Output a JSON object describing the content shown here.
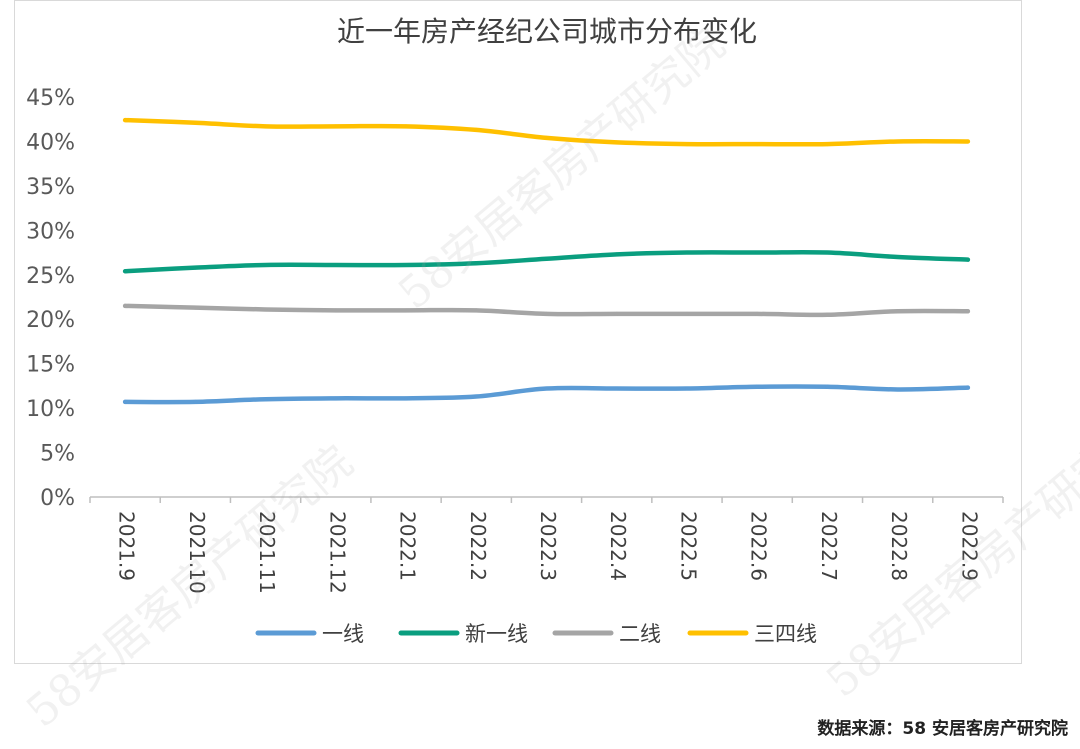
{
  "watermark_text": "58安居客房产研究院",
  "source_note": "数据来源：58 安居客房产研究院",
  "chart_data": {
    "type": "line",
    "title": "近一年房产经纪公司城市分布变化",
    "xlabel": "",
    "ylabel": "",
    "categories": [
      "2021.9",
      "2021.10",
      "2021.11",
      "2021.12",
      "2022.1",
      "2022.2",
      "2022.3",
      "2022.4",
      "2022.5",
      "2022.6",
      "2022.7",
      "2022.8",
      "2022.9"
    ],
    "y_ticks": [
      "0%",
      "5%",
      "10%",
      "15%",
      "20%",
      "25%",
      "30%",
      "35%",
      "40%",
      "45%"
    ],
    "ylim": [
      0,
      45
    ],
    "grid": false,
    "legend_position": "bottom",
    "series": [
      {
        "name": "一线",
        "color": "#5b9bd5",
        "values": [
          10.7,
          10.7,
          11.0,
          11.1,
          11.1,
          11.3,
          12.2,
          12.2,
          12.2,
          12.4,
          12.4,
          12.1,
          12.3
        ]
      },
      {
        "name": "新一线",
        "color": "#0a9e7f",
        "values": [
          25.4,
          25.8,
          26.1,
          26.1,
          26.1,
          26.3,
          26.8,
          27.3,
          27.5,
          27.5,
          27.5,
          27.0,
          26.7
        ]
      },
      {
        "name": "二线",
        "color": "#a5a5a5",
        "values": [
          21.5,
          21.3,
          21.1,
          21.0,
          21.0,
          21.0,
          20.6,
          20.6,
          20.6,
          20.6,
          20.5,
          20.9,
          20.9
        ]
      },
      {
        "name": "三四线",
        "color": "#ffc000",
        "values": [
          42.4,
          42.1,
          41.7,
          41.7,
          41.7,
          41.3,
          40.4,
          39.9,
          39.7,
          39.7,
          39.7,
          40.0,
          40.0
        ]
      }
    ]
  }
}
